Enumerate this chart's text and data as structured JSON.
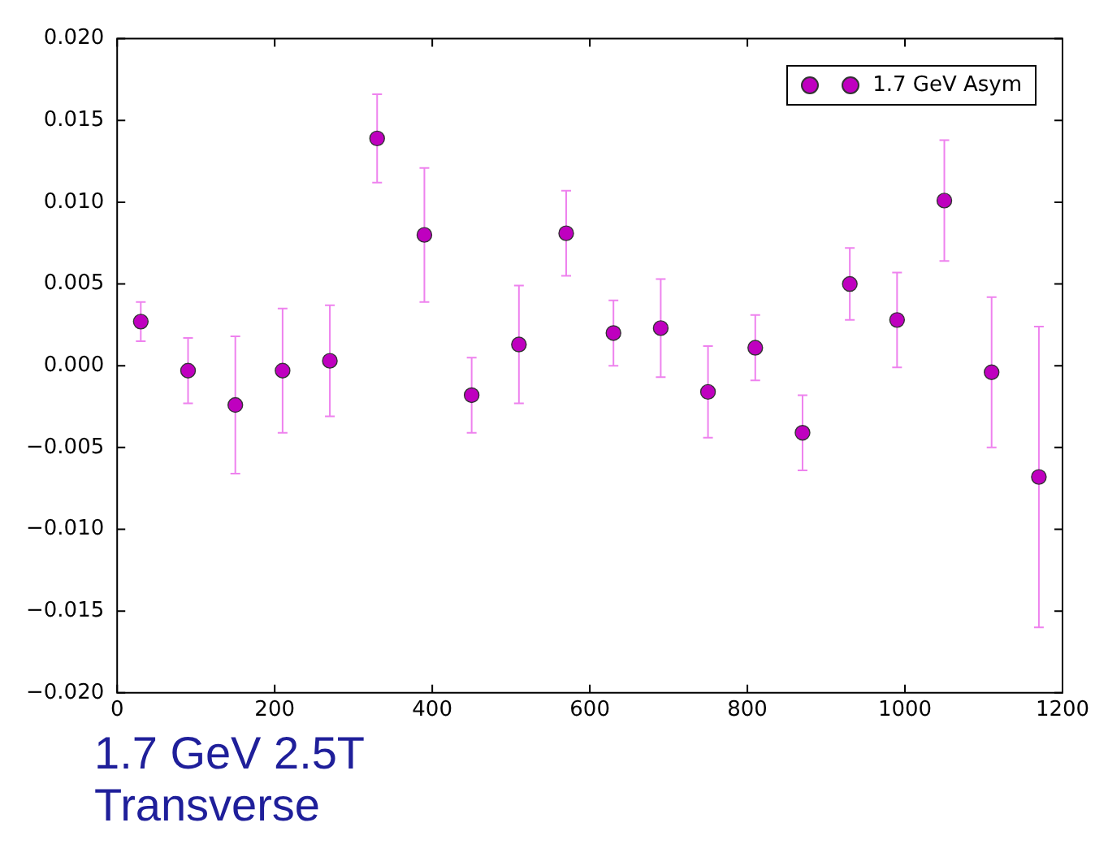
{
  "chart_data": {
    "type": "scatter",
    "x": [
      30,
      90,
      150,
      210,
      270,
      330,
      390,
      450,
      510,
      570,
      630,
      690,
      750,
      810,
      870,
      930,
      990,
      1050,
      1110,
      1170
    ],
    "series": [
      {
        "name": "1.7 GeV Asym",
        "color": "#bf00bf",
        "values": [
          0.0027,
          -0.0003,
          -0.0024,
          -0.0003,
          0.0003,
          0.0139,
          0.008,
          -0.0018,
          0.0013,
          0.0081,
          0.002,
          0.0023,
          -0.0016,
          0.0011,
          -0.0041,
          0.005,
          0.0028,
          0.0101,
          -0.0004,
          -0.0068
        ],
        "errors": [
          0.0012,
          0.002,
          0.0042,
          0.0038,
          0.0034,
          0.0027,
          0.0041,
          0.0023,
          0.0036,
          0.0026,
          0.002,
          0.003,
          0.0028,
          0.002,
          0.0023,
          0.0022,
          0.0029,
          0.0037,
          0.0046,
          0.0092
        ]
      }
    ],
    "xlim": [
      0,
      1200
    ],
    "xticks": [
      0,
      200,
      400,
      600,
      800,
      1000,
      1200
    ],
    "ylim": [
      -0.02,
      0.02
    ],
    "yticks": [
      {
        "value": -0.02,
        "label": "−0.020"
      },
      {
        "value": -0.015,
        "label": "−0.015"
      },
      {
        "value": -0.01,
        "label": "−0.010"
      },
      {
        "value": -0.005,
        "label": "−0.005"
      },
      {
        "value": 0,
        "label": "0.000"
      },
      {
        "value": 0.005,
        "label": "0.005"
      },
      {
        "value": 0.01,
        "label": "0.010"
      },
      {
        "value": 0.015,
        "label": "0.015"
      },
      {
        "value": 0.02,
        "label": "0.020"
      }
    ],
    "grid": false,
    "legend": "top right",
    "marker": "circle",
    "annotations": [
      "1.7 GeV 2.5T Transverse"
    ]
  }
}
